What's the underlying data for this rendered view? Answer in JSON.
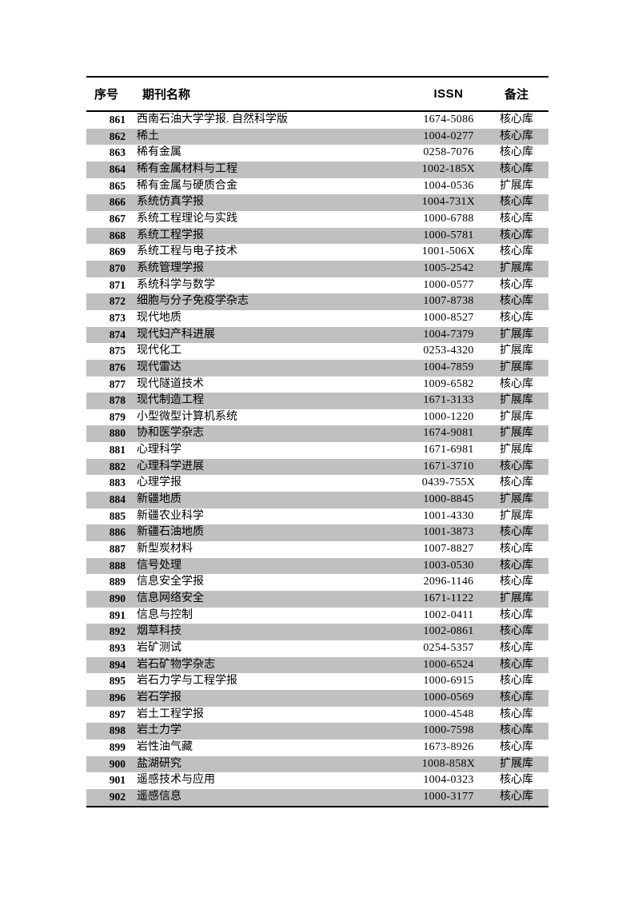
{
  "colors": {
    "page_background": "#ffffff",
    "stripe": "#c0c0c0",
    "rule": "#000000",
    "text": "#000000"
  },
  "table": {
    "columns": {
      "index": "序号",
      "name": "期刊名称",
      "issn": "ISSN",
      "remark": "备注"
    },
    "rows": [
      {
        "index": "861",
        "name": "西南石油大学学报. 自然科学版",
        "issn": "1674-5086",
        "remark": "核心库"
      },
      {
        "index": "862",
        "name": "稀土",
        "issn": "1004-0277",
        "remark": "核心库"
      },
      {
        "index": "863",
        "name": "稀有金属",
        "issn": "0258-7076",
        "remark": "核心库"
      },
      {
        "index": "864",
        "name": "稀有金属材料与工程",
        "issn": "1002-185X",
        "remark": "核心库"
      },
      {
        "index": "865",
        "name": "稀有金属与硬质合金",
        "issn": "1004-0536",
        "remark": "扩展库"
      },
      {
        "index": "866",
        "name": "系统仿真学报",
        "issn": "1004-731X",
        "remark": "核心库"
      },
      {
        "index": "867",
        "name": "系统工程理论与实践",
        "issn": "1000-6788",
        "remark": "核心库"
      },
      {
        "index": "868",
        "name": "系统工程学报",
        "issn": "1000-5781",
        "remark": "核心库"
      },
      {
        "index": "869",
        "name": "系统工程与电子技术",
        "issn": "1001-506X",
        "remark": "核心库"
      },
      {
        "index": "870",
        "name": "系统管理学报",
        "issn": "1005-2542",
        "remark": "扩展库"
      },
      {
        "index": "871",
        "name": "系统科学与数学",
        "issn": "1000-0577",
        "remark": "核心库"
      },
      {
        "index": "872",
        "name": "细胞与分子免疫学杂志",
        "issn": "1007-8738",
        "remark": "核心库"
      },
      {
        "index": "873",
        "name": "现代地质",
        "issn": "1000-8527",
        "remark": "核心库"
      },
      {
        "index": "874",
        "name": "现代妇产科进展",
        "issn": "1004-7379",
        "remark": "扩展库"
      },
      {
        "index": "875",
        "name": "现代化工",
        "issn": "0253-4320",
        "remark": "扩展库"
      },
      {
        "index": "876",
        "name": "现代雷达",
        "issn": "1004-7859",
        "remark": "扩展库"
      },
      {
        "index": "877",
        "name": "现代隧道技术",
        "issn": "1009-6582",
        "remark": "核心库"
      },
      {
        "index": "878",
        "name": "现代制造工程",
        "issn": "1671-3133",
        "remark": "扩展库"
      },
      {
        "index": "879",
        "name": "小型微型计算机系统",
        "issn": "1000-1220",
        "remark": "扩展库"
      },
      {
        "index": "880",
        "name": "协和医学杂志",
        "issn": "1674-9081",
        "remark": "扩展库"
      },
      {
        "index": "881",
        "name": "心理科学",
        "issn": "1671-6981",
        "remark": "扩展库"
      },
      {
        "index": "882",
        "name": "心理科学进展",
        "issn": "1671-3710",
        "remark": "核心库"
      },
      {
        "index": "883",
        "name": "心理学报",
        "issn": "0439-755X",
        "remark": "核心库"
      },
      {
        "index": "884",
        "name": "新疆地质",
        "issn": "1000-8845",
        "remark": "扩展库"
      },
      {
        "index": "885",
        "name": "新疆农业科学",
        "issn": "1001-4330",
        "remark": "扩展库"
      },
      {
        "index": "886",
        "name": "新疆石油地质",
        "issn": "1001-3873",
        "remark": "核心库"
      },
      {
        "index": "887",
        "name": "新型炭材料",
        "issn": "1007-8827",
        "remark": "核心库"
      },
      {
        "index": "888",
        "name": "信号处理",
        "issn": "1003-0530",
        "remark": "核心库"
      },
      {
        "index": "889",
        "name": "信息安全学报",
        "issn": "2096-1146",
        "remark": "核心库"
      },
      {
        "index": "890",
        "name": "信息网络安全",
        "issn": "1671-1122",
        "remark": "扩展库"
      },
      {
        "index": "891",
        "name": "信息与控制",
        "issn": "1002-0411",
        "remark": "核心库"
      },
      {
        "index": "892",
        "name": "烟草科技",
        "issn": "1002-0861",
        "remark": "核心库"
      },
      {
        "index": "893",
        "name": "岩矿测试",
        "issn": "0254-5357",
        "remark": "核心库"
      },
      {
        "index": "894",
        "name": "岩石矿物学杂志",
        "issn": "1000-6524",
        "remark": "核心库"
      },
      {
        "index": "895",
        "name": "岩石力学与工程学报",
        "issn": "1000-6915",
        "remark": "核心库"
      },
      {
        "index": "896",
        "name": "岩石学报",
        "issn": "1000-0569",
        "remark": "核心库"
      },
      {
        "index": "897",
        "name": "岩土工程学报",
        "issn": "1000-4548",
        "remark": "核心库"
      },
      {
        "index": "898",
        "name": "岩土力学",
        "issn": "1000-7598",
        "remark": "核心库"
      },
      {
        "index": "899",
        "name": "岩性油气藏",
        "issn": "1673-8926",
        "remark": "核心库"
      },
      {
        "index": "900",
        "name": "盐湖研究",
        "issn": "1008-858X",
        "remark": "扩展库"
      },
      {
        "index": "901",
        "name": "遥感技术与应用",
        "issn": "1004-0323",
        "remark": "核心库"
      },
      {
        "index": "902",
        "name": "遥感信息",
        "issn": "1000-3177",
        "remark": "核心库"
      }
    ]
  }
}
